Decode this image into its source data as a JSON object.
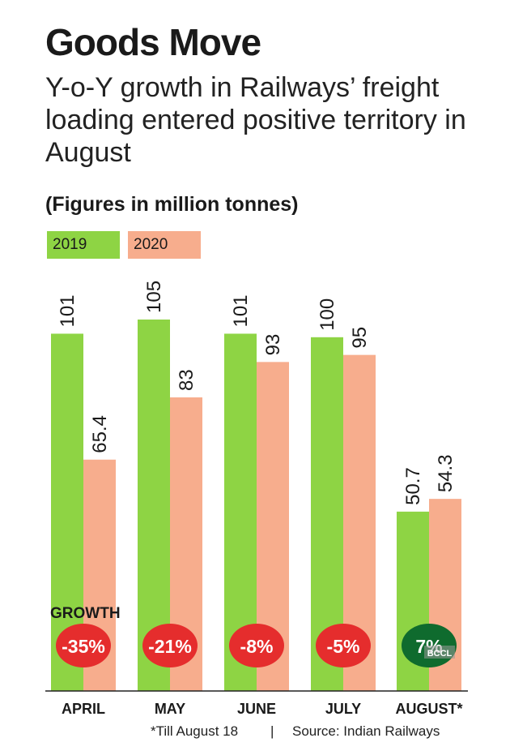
{
  "header": {
    "title": "Goods Move",
    "subtitle": "Y-o-Y growth in Railways’ freight loading entered positive territory in August",
    "unit_note": "(Figures in million tonnes)"
  },
  "legend": [
    {
      "label": "2019",
      "color": "#8ed444"
    },
    {
      "label": "2020",
      "color": "#f7ad8d"
    }
  ],
  "chart_data": {
    "type": "bar",
    "categories": [
      "APRIL",
      "MAY",
      "JUNE",
      "JULY",
      "AUGUST*"
    ],
    "series": [
      {
        "name": "2019",
        "color": "#8ed444",
        "values": [
          101,
          105,
          101,
          100,
          50.7
        ],
        "labels": [
          "101",
          "105",
          "101",
          "100",
          "50.7"
        ]
      },
      {
        "name": "2020",
        "color": "#f7ad8d",
        "values": [
          65.4,
          83,
          93,
          95,
          54.3
        ],
        "labels": [
          "65.4",
          "83",
          "93",
          "95",
          "54.3"
        ]
      }
    ],
    "growth_label": "GROWTH",
    "growth": [
      {
        "value": "-35%",
        "color": "#e52d2d"
      },
      {
        "value": "-21%",
        "color": "#e52d2d"
      },
      {
        "value": "-8%",
        "color": "#e52d2d"
      },
      {
        "value": "-5%",
        "color": "#e52d2d"
      },
      {
        "value": "7%",
        "color": "#0f6b2e"
      }
    ],
    "ylim": [
      0,
      105
    ],
    "grid": false,
    "legend_position": "top-left"
  },
  "watermark": "BCCL",
  "footer": {
    "note": "*Till August 18",
    "separator": "|",
    "source": "Source: Indian Railways"
  }
}
